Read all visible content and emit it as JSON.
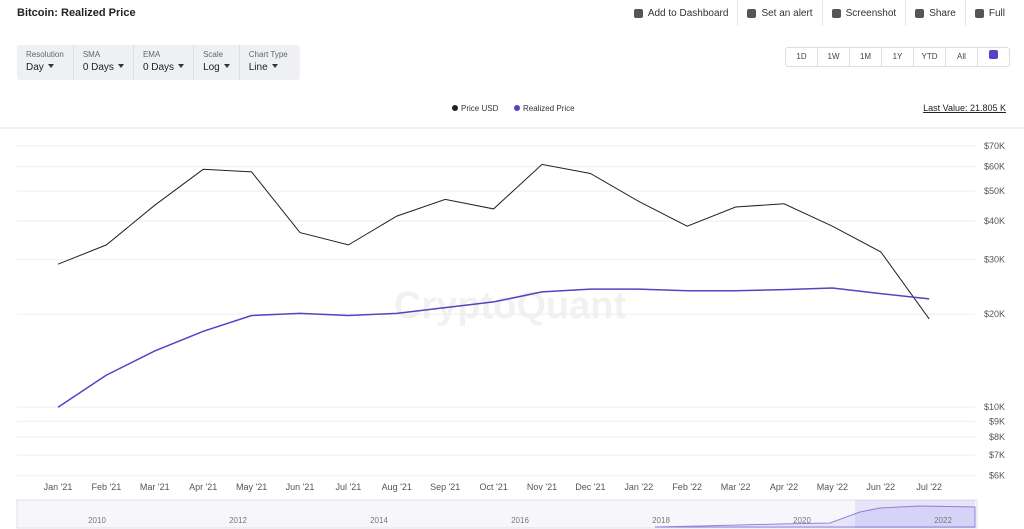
{
  "header": {
    "title": "Bitcoin: Realized Price",
    "actions": [
      "Add to Dashboard",
      "Set an alert",
      "Screenshot",
      "Share",
      "Full"
    ]
  },
  "controls": [
    {
      "label": "Resolution",
      "value": "Day"
    },
    {
      "label": "SMA",
      "value": "0 Days"
    },
    {
      "label": "EMA",
      "value": "0 Days"
    },
    {
      "label": "Scale",
      "value": "Log"
    },
    {
      "label": "Chart Type",
      "value": "Line"
    }
  ],
  "ranges": [
    "1D",
    "1W",
    "1M",
    "1Y",
    "YTD",
    "All"
  ],
  "last_value": "Last Value: 21.805 K",
  "watermark": "CryptoQuant",
  "navigator": {
    "years": [
      "2010",
      "2012",
      "2014",
      "2016",
      "2018",
      "2020",
      "2022"
    ]
  },
  "chart_data": {
    "type": "line",
    "log_scale": true,
    "categories": [
      "Jan '21",
      "Feb '21",
      "Mar '21",
      "Apr '21",
      "May '21",
      "Jun '21",
      "Jul '21",
      "Aug '21",
      "Sep '21",
      "Oct '21",
      "Nov '21",
      "Dec '21",
      "Jan '22",
      "Feb '22",
      "Mar '22",
      "Apr '22",
      "May '22",
      "Jun '22",
      "Jul '22"
    ],
    "series": [
      {
        "name": "Price USD",
        "color": "#222222",
        "values": [
          29000,
          33500,
          45000,
          58800,
          57700,
          36700,
          33500,
          41500,
          47000,
          43800,
          61000,
          57000,
          46300,
          38500,
          44400,
          45500,
          38500,
          31800,
          19300
        ]
      },
      {
        "name": "Realized Price",
        "color": "#5b3fc4",
        "values": [
          10000,
          12700,
          15200,
          17600,
          19800,
          20100,
          19800,
          20100,
          21000,
          21900,
          23600,
          24100,
          24100,
          23800,
          23800,
          24000,
          24300,
          23300,
          22400
        ]
      }
    ],
    "ylim": [
      5600,
      80000
    ],
    "yticks": [
      {
        "value": 6000,
        "label": "$6K"
      },
      {
        "value": 7000,
        "label": "$7K"
      },
      {
        "value": 8000,
        "label": "$8K"
      },
      {
        "value": 9000,
        "label": "$9K"
      },
      {
        "value": 10000,
        "label": "$10K"
      },
      {
        "value": 20000,
        "label": "$20K"
      },
      {
        "value": 30000,
        "label": "$30K"
      },
      {
        "value": 40000,
        "label": "$40K"
      },
      {
        "value": 50000,
        "label": "$50K"
      },
      {
        "value": 60000,
        "label": "$60K"
      },
      {
        "value": 70000,
        "label": "$70K"
      }
    ],
    "grid": true
  }
}
